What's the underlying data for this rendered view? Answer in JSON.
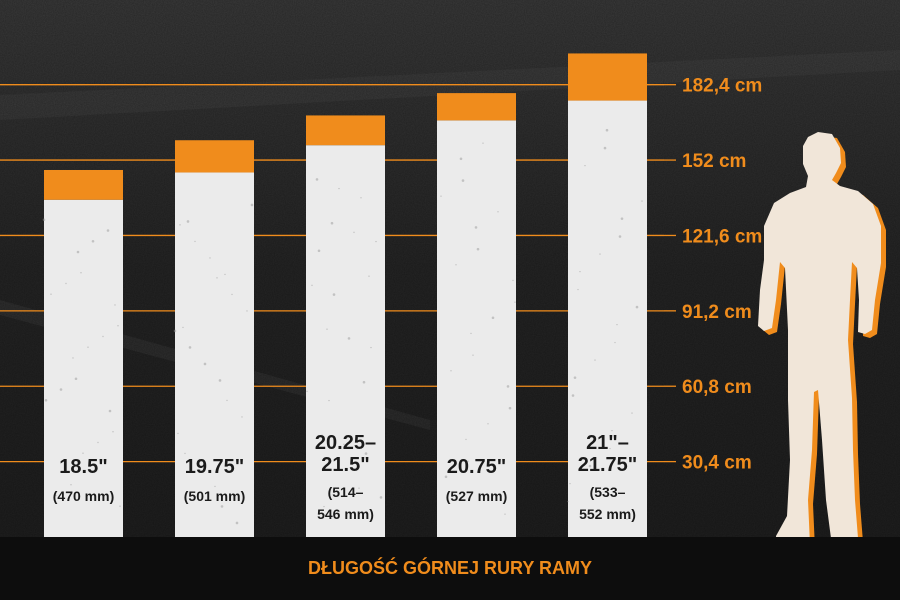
{
  "chart_data": {
    "type": "bar",
    "categories": [
      "18.5\" (470 mm)",
      "19.75\" (501 mm)",
      "20.25–21.5\" (514–546 mm)",
      "20.75\" (527 mm)",
      "21\"–21.75\" (533–552 mm)"
    ],
    "bar_labels": [
      [
        "18.5\"",
        "(470 mm)"
      ],
      [
        "19.75\"",
        "(501 mm)"
      ],
      [
        "20.25–",
        "21.5\"",
        "(514–",
        "546 mm)"
      ],
      [
        "20.75\"",
        "(527 mm)"
      ],
      [
        "21\"–",
        "21.75\"",
        "(533–",
        "552 mm)"
      ]
    ],
    "series": [
      {
        "values": [
          136,
          147,
          158,
          168,
          176
        ]
      },
      {
        "values": [
          148,
          160,
          170,
          179,
          195
        ]
      }
    ],
    "yticks": [
      "30,4 cm",
      "60,8 cm",
      "91,2 cm",
      "121,6 cm",
      "152 cm",
      "182,4 cm"
    ],
    "ytick_values": [
      30.4,
      60.8,
      91.2,
      121.6,
      152,
      182.4
    ],
    "ylim": [
      0,
      198
    ],
    "title": "DŁUGOŚĆ GÓRNEJ RURY RAMY",
    "grid": true,
    "colors": {
      "accent": "#f08c1c",
      "bar": "#ebebeb",
      "background": "#222222",
      "footer": "#0d0d0d",
      "figure": "#f1e6d9"
    }
  }
}
